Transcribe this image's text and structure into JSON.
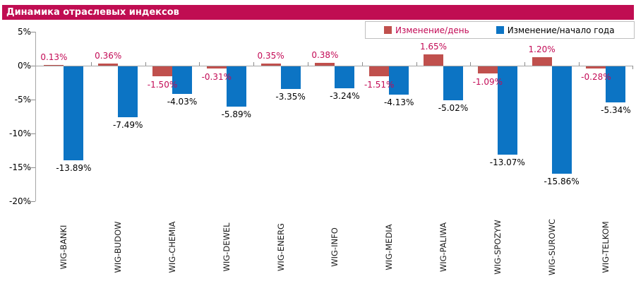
{
  "chart_data": {
    "type": "bar",
    "title": "Динамика отраслевых индексов",
    "categories": [
      "WIG-BANKI",
      "WIG-BUDOW",
      "WIG-CHEMIA",
      "WIG-DEWEL",
      "WIG-ENERG",
      "WIG-INFO",
      "WIG-MEDIA",
      "WIG-PALIWA",
      "WIG-SPOZYW",
      "WIG-SUROWC",
      "WIG-TELKOM"
    ],
    "series": [
      {
        "name": "Изменение/день",
        "color": "#c0504d",
        "label_color": "#c30b56",
        "values": [
          0.13,
          0.36,
          -1.5,
          -0.31,
          0.35,
          0.38,
          -1.51,
          1.65,
          -1.09,
          1.2,
          -0.28
        ],
        "labels": [
          "0.13%",
          "0.36%",
          "-1.50%",
          "-0.31%",
          "0.35%",
          "0.38%",
          "-1.51%",
          "1.65%",
          "-1.09%",
          "1.20%",
          "-0.28%"
        ]
      },
      {
        "name": "Изменение/начало года",
        "color": "#0c74c4",
        "label_color": "#000000",
        "values": [
          -13.89,
          -7.49,
          -4.03,
          -5.89,
          -3.35,
          -3.24,
          -4.13,
          -5.02,
          -13.07,
          -15.86,
          -5.34
        ],
        "labels": [
          "-13.89%",
          "-7.49%",
          "-4.03%",
          "-5.89%",
          "-3.35%",
          "-3.24%",
          "-4.13%",
          "-5.02%",
          "-13.07%",
          "-15.86%",
          "-5.34%"
        ]
      }
    ],
    "y_axis": {
      "tick_labels": [
        "5%",
        "0%",
        "-5%",
        "-10%",
        "-15%",
        "-20%"
      ],
      "tick_values": [
        5,
        0,
        -5,
        -10,
        -15,
        -20
      ],
      "max": 5,
      "min": -20,
      "grid": false
    },
    "legend_position": "top-right",
    "colors": {
      "title_bar_bg": "#c00d52",
      "day_label_text": "#c30b56",
      "axis_line": "#a6a6a6"
    }
  }
}
